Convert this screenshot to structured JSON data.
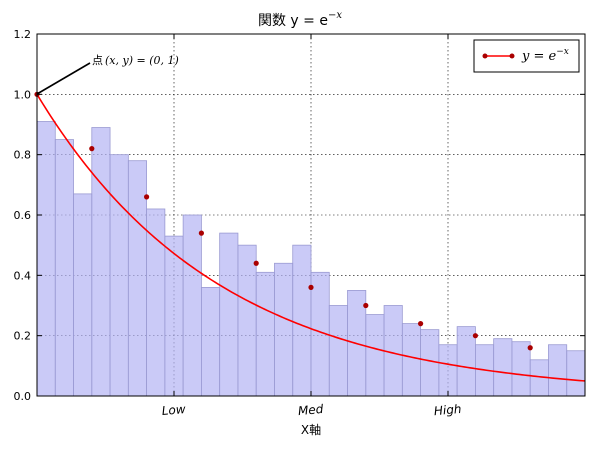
{
  "chart_data": {
    "type": "bar",
    "title": "関数 y = e",
    "title_superscript": "−x",
    "xlabel": "X軸",
    "ylabel": "",
    "ylim": [
      0,
      1.2
    ],
    "xlim": [
      0,
      3
    ],
    "yticks": [
      "0.0",
      "0.2",
      "0.4",
      "0.6",
      "0.8",
      "1.0",
      "1.2"
    ],
    "ytick_values": [
      0.0,
      0.2,
      0.4,
      0.6,
      0.8,
      1.0,
      1.2
    ],
    "xticks": [
      "Low",
      "Med",
      "High"
    ],
    "xtick_values": [
      0.75,
      1.5,
      2.25
    ],
    "grid": true,
    "legend_position": "top-right",
    "bar_color": "#b4b4f4",
    "bar_edge_color": "#9a9ad2",
    "histogram": {
      "bin_width": 0.1,
      "values": [
        0.91,
        0.85,
        0.67,
        0.89,
        0.8,
        0.78,
        0.62,
        0.53,
        0.6,
        0.36,
        0.54,
        0.5,
        0.41,
        0.44,
        0.5,
        0.41,
        0.3,
        0.35,
        0.27,
        0.3,
        0.24,
        0.22,
        0.17,
        0.23,
        0.17,
        0.19,
        0.18,
        0.12,
        0.17,
        0.15
      ]
    },
    "series": [
      {
        "name": "y = e",
        "name_superscript": "−x",
        "color": "#ff0000",
        "marker_color": "#aa0000",
        "x": [
          0.0,
          0.3,
          0.6,
          0.9,
          1.2,
          1.5,
          1.8,
          2.1,
          2.4,
          2.7
        ],
        "y": [
          1.0,
          0.82,
          0.66,
          0.54,
          0.44,
          0.36,
          0.3,
          0.24,
          0.2,
          0.16
        ]
      }
    ],
    "annotation": {
      "prefix": "点",
      "text": "(x, y) = (0, 1)",
      "x": 0,
      "y": 1
    }
  }
}
